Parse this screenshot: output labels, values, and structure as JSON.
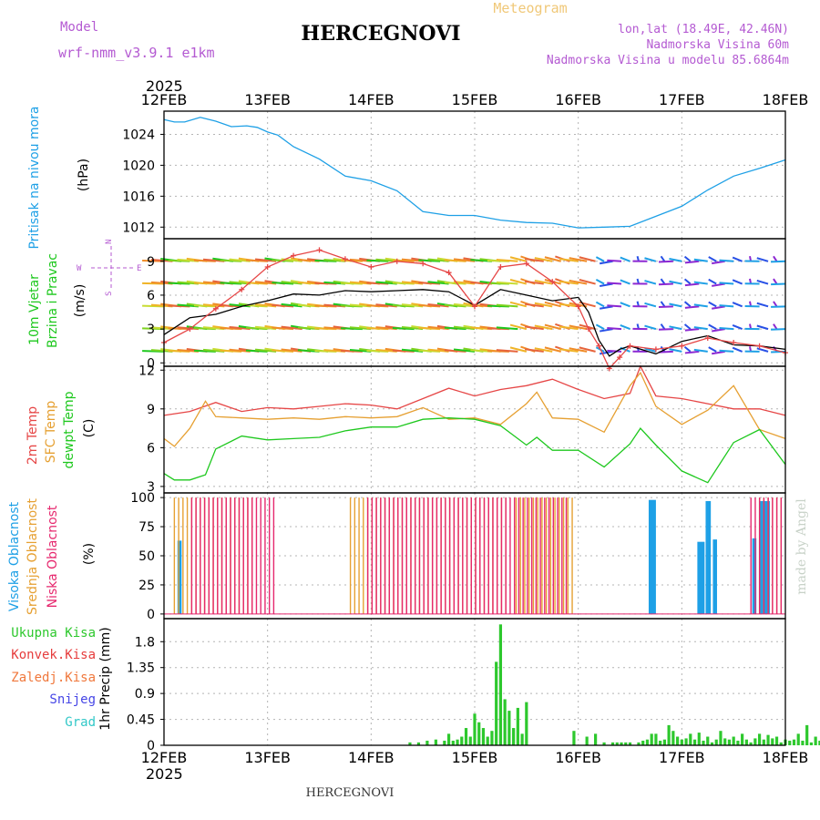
{
  "header": {
    "model_label": "Model",
    "model_value": "wrf-nmm_v3.9.1 e1km",
    "title": "HERCEGNOVI",
    "subtitle": "Meteogram",
    "location": "lon,lat (18.49E, 42.46N)",
    "elevation": "Nadmorska Visina 60m",
    "model_elevation": "Nadmorska Visina u modelu 85.6864m"
  },
  "footer": {
    "station": "HERCEGNOVI",
    "credit": "made by Angel"
  },
  "axis": {
    "year_top": "2025",
    "year_bottom": "2025",
    "dates": [
      "12FEB",
      "13FEB",
      "14FEB",
      "15FEB",
      "16FEB",
      "17FEB",
      "18FEB"
    ]
  },
  "colors": {
    "pressure": "#1ea0e6",
    "temp2m": "#e64646",
    "sfc": "#e6a032",
    "dewpt": "#1ec81e",
    "cloud_high": "#1ea0e6",
    "cloud_mid": "#e6a032",
    "cloud_low": "#e6286e",
    "precip_total": "#2dc82d",
    "precip_conv": "#e63c3c",
    "precip_frozen": "#f0783c",
    "snow": "#4646e6",
    "hail": "#32c8c8",
    "label_purple": "#b45ad2",
    "label_orange": "#f0c878"
  },
  "chart_data": [
    {
      "type": "line",
      "name": "pressure",
      "ylabel_main": "Pritisak na nivou mora",
      "ylabel_unit": "(hPa)",
      "yticks": [
        1012,
        1016,
        1020,
        1024
      ],
      "ylim": [
        1010.5,
        1027
      ],
      "x_days": [
        0,
        0.1,
        0.2,
        0.35,
        0.5,
        0.65,
        0.8,
        0.9,
        1,
        1.1,
        1.25,
        1.5,
        1.75,
        2,
        2.25,
        2.5,
        2.75,
        3,
        3.25,
        3.5,
        3.75,
        4,
        4.25,
        4.5,
        4.75,
        5,
        5.25,
        5.5,
        5.75,
        6
      ],
      "values": [
        1025.9,
        1025.6,
        1025.6,
        1026.2,
        1025.7,
        1025,
        1025.1,
        1024.9,
        1024.3,
        1023.9,
        1022.4,
        1020.8,
        1018.6,
        1018,
        1016.7,
        1014,
        1013.5,
        1013.5,
        1012.9,
        1012.6,
        1012.5,
        1011.9,
        1012,
        1012.1,
        1013.4,
        1014.7,
        1016.8,
        1018.6,
        1019.6,
        1020.7
      ],
      "grid": true
    },
    {
      "type": "line",
      "name": "wind",
      "ylabel_main": "10m Vjetar",
      "ylabel_sub": "Brzina i Pravac",
      "ylabel_unit": "(m/s)",
      "compass": [
        "W",
        "<",
        "-",
        "|",
        "-",
        ">",
        "E",
        "N",
        "S"
      ],
      "yticks": [
        0,
        3,
        6,
        9
      ],
      "ylim": [
        -0.3,
        11
      ],
      "series": [
        {
          "name": "speed",
          "x_days": [
            0,
            0.25,
            0.5,
            0.75,
            1,
            1.25,
            1.5,
            1.75,
            2,
            2.25,
            2.5,
            2.75,
            3,
            3.25,
            3.5,
            3.75,
            4,
            4.1,
            4.2,
            4.3,
            4.4,
            4.5,
            4.75,
            5,
            5.25,
            5.5,
            5.75,
            6
          ],
          "values": [
            2.5,
            4,
            4.3,
            5,
            5.5,
            6.1,
            6,
            6.4,
            6.3,
            6.4,
            6.5,
            6.3,
            5.1,
            6.5,
            6,
            5.5,
            5.8,
            4.5,
            2,
            0.6,
            1.2,
            1.5,
            0.8,
            1.9,
            2.4,
            1.6,
            1.5,
            1.2
          ]
        },
        {
          "name": "gust",
          "x_days": [
            0,
            0.25,
            0.5,
            0.75,
            1,
            1.25,
            1.5,
            1.75,
            2,
            2.25,
            2.5,
            2.75,
            3,
            3.25,
            3.5,
            3.75,
            4,
            4.1,
            4.2,
            4.3,
            4.4,
            4.5,
            4.75,
            5,
            5.25,
            5.5,
            5.75,
            6
          ],
          "values": [
            1.8,
            3,
            4.8,
            6.5,
            8.5,
            9.5,
            10,
            9.2,
            8.5,
            9,
            8.8,
            8,
            5,
            8.5,
            8.8,
            7.2,
            5,
            3,
            1.5,
            -0.5,
            0.5,
            1.5,
            1.2,
            1.5,
            2.2,
            1.8,
            1.5,
            0.9
          ]
        }
      ],
      "barb_rows": [
        1,
        3,
        5,
        7,
        9
      ],
      "grid": true
    },
    {
      "type": "line",
      "name": "temperature",
      "ylabel_main": "2m Temp",
      "ylabel_sub": "SFC Temp",
      "ylabel_third": "dewpt Temp",
      "ylabel_unit": "(C)",
      "yticks": [
        3,
        6,
        9,
        12
      ],
      "ylim": [
        2.5,
        12.3
      ],
      "series": [
        {
          "name": "2m Temp",
          "x_days": [
            0,
            0.25,
            0.5,
            0.75,
            1,
            1.25,
            1.5,
            1.75,
            2,
            2.25,
            2.5,
            2.75,
            3,
            3.25,
            3.5,
            3.75,
            4,
            4.25,
            4.5,
            4.6,
            4.75,
            5,
            5.25,
            5.5,
            5.75,
            6
          ],
          "values": [
            8.5,
            8.8,
            9.5,
            8.8,
            9.1,
            9,
            9.2,
            9.4,
            9.3,
            9,
            9.8,
            10.6,
            10,
            10.5,
            10.8,
            11.3,
            10.5,
            9.8,
            10.2,
            12.3,
            10,
            9.8,
            9.4,
            9,
            9,
            8.5
          ]
        },
        {
          "name": "SFC Temp",
          "x_days": [
            0,
            0.1,
            0.25,
            0.4,
            0.5,
            0.75,
            1,
            1.25,
            1.5,
            1.75,
            2,
            2.25,
            2.5,
            2.75,
            3,
            3.25,
            3.5,
            3.6,
            3.75,
            4,
            4.25,
            4.5,
            4.6,
            4.75,
            5,
            5.25,
            5.5,
            5.75,
            6
          ],
          "values": [
            6.7,
            6.1,
            7.5,
            9.6,
            8.4,
            8.3,
            8.2,
            8.3,
            8.2,
            8.4,
            8.3,
            8.4,
            9.1,
            8.2,
            8.3,
            7.8,
            9.4,
            10.3,
            8.3,
            8.2,
            7.2,
            10.8,
            11.8,
            9.2,
            7.8,
            8.9,
            10.8,
            7.4,
            6.7
          ]
        },
        {
          "name": "dewpt Temp",
          "x_days": [
            0,
            0.1,
            0.25,
            0.4,
            0.5,
            0.75,
            1,
            1.25,
            1.5,
            1.75,
            2,
            2.25,
            2.5,
            2.75,
            3,
            3.25,
            3.5,
            3.6,
            3.75,
            4,
            4.25,
            4.5,
            4.6,
            4.75,
            5,
            5.25,
            5.5,
            5.75,
            6
          ],
          "values": [
            4,
            3.5,
            3.5,
            3.9,
            5.9,
            6.9,
            6.6,
            6.7,
            6.8,
            7.3,
            7.6,
            7.6,
            8.2,
            8.3,
            8.2,
            7.7,
            6.2,
            6.8,
            5.8,
            5.8,
            4.5,
            6.3,
            7.5,
            6.2,
            4.2,
            3.3,
            6.4,
            7.4,
            4.7
          ]
        }
      ],
      "grid": true
    },
    {
      "type": "bar",
      "name": "cloud_cover",
      "ylabel_main": "Visoka Oblacnost",
      "ylabel_sub": "Srednja Oblacnost",
      "ylabel_third": "Niska Oblacnost",
      "ylabel_unit": "(%)",
      "yticks": [
        0,
        25,
        50,
        75,
        100
      ],
      "ylim": [
        -4,
        104
      ],
      "note": "hourly bars, 100% when present",
      "series": [
        {
          "name": "Visoka Oblacnost",
          "segments": [
            [
              0.13,
              0.17,
              63
            ],
            [
              4.68,
              4.75,
              98
            ],
            [
              5.15,
              5.22,
              62
            ],
            [
              5.23,
              5.28,
              97
            ],
            [
              5.3,
              5.34,
              64
            ],
            [
              5.68,
              5.72,
              65
            ],
            [
              5.75,
              5.85,
              97
            ]
          ]
        },
        {
          "name": "Srednja Oblacnost",
          "segments": [
            [
              0.1,
              0.85,
              100
            ],
            [
              1.8,
              3.3,
              100
            ],
            [
              3.4,
              3.95,
              100
            ],
            [
              5.75,
              6,
              100
            ]
          ]
        },
        {
          "name": "Niska Oblacnost",
          "segments": [
            [
              0.25,
              1.05,
              100
            ],
            [
              1.95,
              3.9,
              100
            ],
            [
              5.65,
              5.95,
              100
            ]
          ]
        }
      ],
      "grid": true
    },
    {
      "type": "bar",
      "name": "precipitation",
      "legend": [
        "Ukupna Kisa",
        "Konvek.Kisa",
        "Zaledj.Kisa",
        "Snijeg",
        "Grad"
      ],
      "ylabel_unit": "1hr Precip (mm)",
      "yticks": [
        0,
        0.45,
        0.9,
        1.35,
        1.8
      ],
      "ylim": [
        0,
        2.2
      ],
      "x_hours": [
        57,
        59,
        61,
        63,
        65,
        66,
        67,
        68,
        69,
        70,
        71,
        72,
        73,
        74,
        75,
        76,
        77,
        78,
        79,
        80,
        81,
        82,
        83,
        84,
        95,
        98,
        100,
        102,
        104,
        105,
        106,
        107,
        108,
        110,
        111,
        112,
        113,
        114,
        115,
        116,
        117,
        118,
        119,
        120,
        121,
        122,
        123,
        124,
        125,
        126,
        127,
        128,
        129,
        130,
        131,
        132,
        133,
        134,
        135,
        136,
        137,
        138,
        139,
        140,
        141,
        142,
        143,
        144,
        145,
        146,
        147,
        148,
        149,
        150,
        151,
        152,
        153,
        154,
        155,
        156,
        157,
        158,
        159,
        160,
        161,
        162,
        163,
        164,
        165,
        166,
        167,
        168,
        169,
        170,
        171
      ],
      "values": [
        0.05,
        0.05,
        0.08,
        0.1,
        0.08,
        0.2,
        0.08,
        0.1,
        0.15,
        0.3,
        0.15,
        0.55,
        0.4,
        0.3,
        0.15,
        0.25,
        1.45,
        2.1,
        0.8,
        0.6,
        0.3,
        0.65,
        0.2,
        0.75,
        0.25,
        0.15,
        0.2,
        0.05,
        0.05,
        0.05,
        0.05,
        0.05,
        0.05,
        0.05,
        0.08,
        0.1,
        0.2,
        0.2,
        0.08,
        0.1,
        0.35,
        0.25,
        0.15,
        0.1,
        0.12,
        0.2,
        0.1,
        0.22,
        0.08,
        0.15,
        0.05,
        0.1,
        0.25,
        0.12,
        0.1,
        0.15,
        0.08,
        0.2,
        0.1,
        0.05,
        0.12,
        0.2,
        0.1,
        0.18,
        0.12,
        0.15,
        0.05,
        0.1,
        0.08,
        0.1,
        0.2,
        0.08,
        0.35,
        0.05,
        0.15,
        0.08,
        0.45,
        0.3,
        0.2,
        0.3,
        0.55,
        0.65,
        0.35,
        0.4,
        0.3,
        0.5,
        0.45,
        0.2,
        0.4,
        0.3,
        0.12,
        0.08,
        0.35,
        0.3,
        0.05
      ],
      "grid": true
    }
  ]
}
